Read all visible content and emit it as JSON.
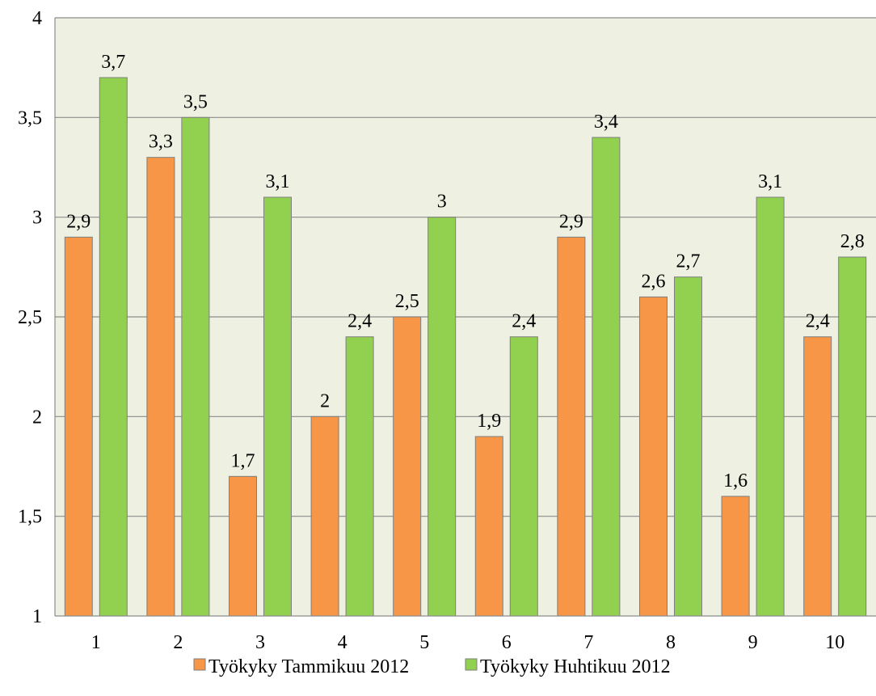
{
  "chart_data": {
    "type": "bar",
    "categories": [
      "1",
      "2",
      "3",
      "4",
      "5",
      "6",
      "7",
      "8",
      "9",
      "10"
    ],
    "series": [
      {
        "name": "Työkyky Tammikuu 2012",
        "values": [
          2.9,
          3.3,
          1.7,
          2.0,
          2.5,
          1.9,
          2.9,
          2.6,
          1.6,
          2.4
        ],
        "labels": [
          "2,9",
          "3,3",
          "1,7",
          "2",
          "2,5",
          "1,9",
          "2,9",
          "2,6",
          "1,6",
          "2,4"
        ],
        "color": "#F79646"
      },
      {
        "name": "Työkyky Huhtikuu 2012",
        "values": [
          3.7,
          3.5,
          3.1,
          2.4,
          3.0,
          2.4,
          3.4,
          2.7,
          3.1,
          2.8
        ],
        "labels": [
          "3,7",
          "3,5",
          "3,1",
          "2,4",
          "3",
          "2,4",
          "3,4",
          "2,7",
          "3,1",
          "2,8"
        ],
        "color": "#92D050"
      }
    ],
    "ylim": [
      1,
      4
    ],
    "yticks": [
      1,
      1.5,
      2,
      2.5,
      3,
      3.5,
      4
    ],
    "ytick_labels": [
      "1",
      "1,5",
      "2",
      "2,5",
      "3",
      "3,5",
      "4"
    ],
    "grid": true,
    "plot_background": "#EEF0E2",
    "legend_position": "bottom",
    "title": "",
    "xlabel": "",
    "ylabel": ""
  }
}
